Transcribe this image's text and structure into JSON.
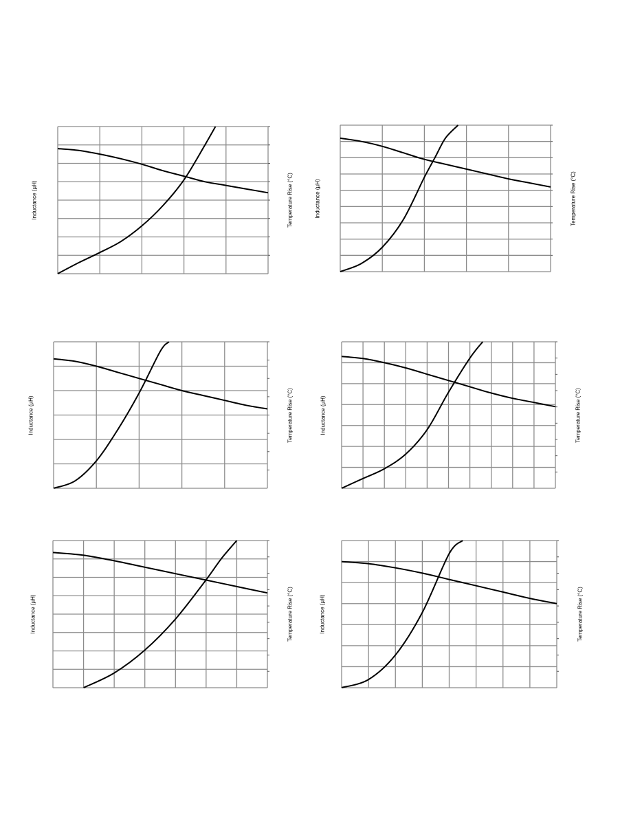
{
  "labels": {
    "y_left": "Inductance (µH)",
    "y_right": "Temperature Rise (°C)"
  },
  "line_color": "#000000",
  "grid_color": "#8c8c8c",
  "chart_data": [
    {
      "type": "line",
      "ylabel": "Inductance (µH)",
      "y2label": "Temperature Rise (°C)",
      "grid": true,
      "xdiv": 5,
      "ydiv": 8,
      "y2ticks": 8,
      "xlim": [
        0,
        10
      ],
      "ylim": [
        0,
        8
      ],
      "y2lim": [
        0,
        8
      ],
      "series": [
        {
          "axis": "left",
          "x": [
            0,
            1,
            2,
            3,
            4,
            5,
            6,
            7,
            8,
            9,
            10
          ],
          "values": [
            6.8,
            6.7,
            6.5,
            6.25,
            5.95,
            5.6,
            5.3,
            5.0,
            4.8,
            4.6,
            4.4
          ]
        },
        {
          "axis": "right",
          "x": [
            0,
            1,
            2,
            3,
            4,
            5,
            6,
            7,
            7.5
          ],
          "values": [
            0,
            0.6,
            1.15,
            1.75,
            2.6,
            3.7,
            5.1,
            7.0,
            8.0
          ]
        }
      ]
    },
    {
      "type": "line",
      "ylabel": "Inductance (µH)",
      "y2label": "Temperature Rise (°C)",
      "grid": true,
      "xdiv": 5,
      "ydiv": 9,
      "y2ticks": 9,
      "xlim": [
        0,
        10
      ],
      "ylim": [
        0,
        9
      ],
      "y2lim": [
        0,
        9
      ],
      "series": [
        {
          "axis": "left",
          "x": [
            0,
            1,
            2,
            3,
            4,
            5,
            6,
            7,
            8,
            9,
            10
          ],
          "values": [
            8.2,
            8.0,
            7.7,
            7.3,
            6.9,
            6.6,
            6.3,
            6.0,
            5.7,
            5.45,
            5.2
          ]
        },
        {
          "axis": "right",
          "x": [
            0,
            1,
            2,
            3,
            4,
            4.5,
            5,
            5.6
          ],
          "values": [
            0,
            0.5,
            1.5,
            3.2,
            5.8,
            7.0,
            8.2,
            9.0
          ]
        }
      ]
    },
    {
      "type": "line",
      "ylabel": "Inductance (µH)",
      "y2label": "Temperature Rise (°C)",
      "grid": true,
      "xdiv": 5,
      "ydiv": 6,
      "y2ticks": 8,
      "xlim": [
        0,
        10
      ],
      "ylim": [
        0,
        6
      ],
      "y2lim": [
        0,
        8
      ],
      "series": [
        {
          "axis": "left",
          "x": [
            0,
            1,
            2,
            3,
            4,
            5,
            6,
            7,
            8,
            9,
            10
          ],
          "values": [
            5.3,
            5.2,
            5.0,
            4.75,
            4.5,
            4.25,
            4.0,
            3.8,
            3.6,
            3.4,
            3.25
          ]
        },
        {
          "axis": "right",
          "x": [
            0,
            1,
            2,
            3,
            4,
            5,
            5.4
          ],
          "values": [
            0,
            0.4,
            1.5,
            3.2,
            5.2,
            7.5,
            8.0
          ]
        }
      ]
    },
    {
      "type": "line",
      "ylabel": "Inductance (µH)",
      "y2label": "Temperature Rise (°C)",
      "grid": true,
      "xdiv": 10,
      "ydiv": 7,
      "y2ticks": 9,
      "xlim": [
        0,
        10
      ],
      "ylim": [
        0,
        7
      ],
      "y2lim": [
        0,
        9
      ],
      "series": [
        {
          "axis": "left",
          "x": [
            0,
            1,
            2,
            3,
            4,
            5,
            6,
            7,
            8,
            9,
            10
          ],
          "values": [
            6.3,
            6.2,
            6.0,
            5.75,
            5.45,
            5.15,
            4.85,
            4.55,
            4.3,
            4.1,
            3.9
          ]
        },
        {
          "axis": "right",
          "x": [
            0,
            1,
            2,
            3,
            4,
            5,
            6,
            6.6
          ],
          "values": [
            0,
            0.6,
            1.2,
            2.1,
            3.6,
            5.9,
            8.0,
            9.0
          ]
        }
      ]
    },
    {
      "type": "line",
      "ylabel": "Inductance (µH)",
      "y2label": "Temperature Rise (°C)",
      "grid": true,
      "xdiv": 7,
      "ydiv": 8,
      "y2ticks": 9,
      "xlim": [
        0,
        7
      ],
      "ylim": [
        0,
        8
      ],
      "y2lim": [
        0,
        9
      ],
      "series": [
        {
          "axis": "left",
          "x": [
            0,
            1,
            2,
            3,
            4,
            5,
            6,
            7
          ],
          "values": [
            7.35,
            7.2,
            6.9,
            6.55,
            6.2,
            5.85,
            5.5,
            5.15
          ]
        },
        {
          "axis": "right",
          "x": [
            1,
            2,
            3,
            4,
            5,
            5.5,
            6.0
          ],
          "values": [
            0,
            0.9,
            2.3,
            4.2,
            6.6,
            7.9,
            9.0
          ]
        }
      ]
    },
    {
      "type": "line",
      "ylabel": "Inductance (µH)",
      "y2label": "Temperature Rise (°C)",
      "grid": true,
      "xdiv": 8,
      "ydiv": 7,
      "y2ticks": 9,
      "xlim": [
        0,
        8
      ],
      "ylim": [
        0,
        7
      ],
      "y2lim": [
        0,
        9
      ],
      "series": [
        {
          "axis": "left",
          "x": [
            0,
            1,
            2,
            3,
            4,
            5,
            6,
            7,
            8
          ],
          "values": [
            6.0,
            5.9,
            5.7,
            5.45,
            5.15,
            4.85,
            4.55,
            4.25,
            4.0
          ]
        },
        {
          "axis": "right",
          "x": [
            0,
            1,
            2,
            3,
            4,
            4.5
          ],
          "values": [
            0,
            0.5,
            2.0,
            4.6,
            8.2,
            9.0
          ]
        }
      ]
    }
  ]
}
